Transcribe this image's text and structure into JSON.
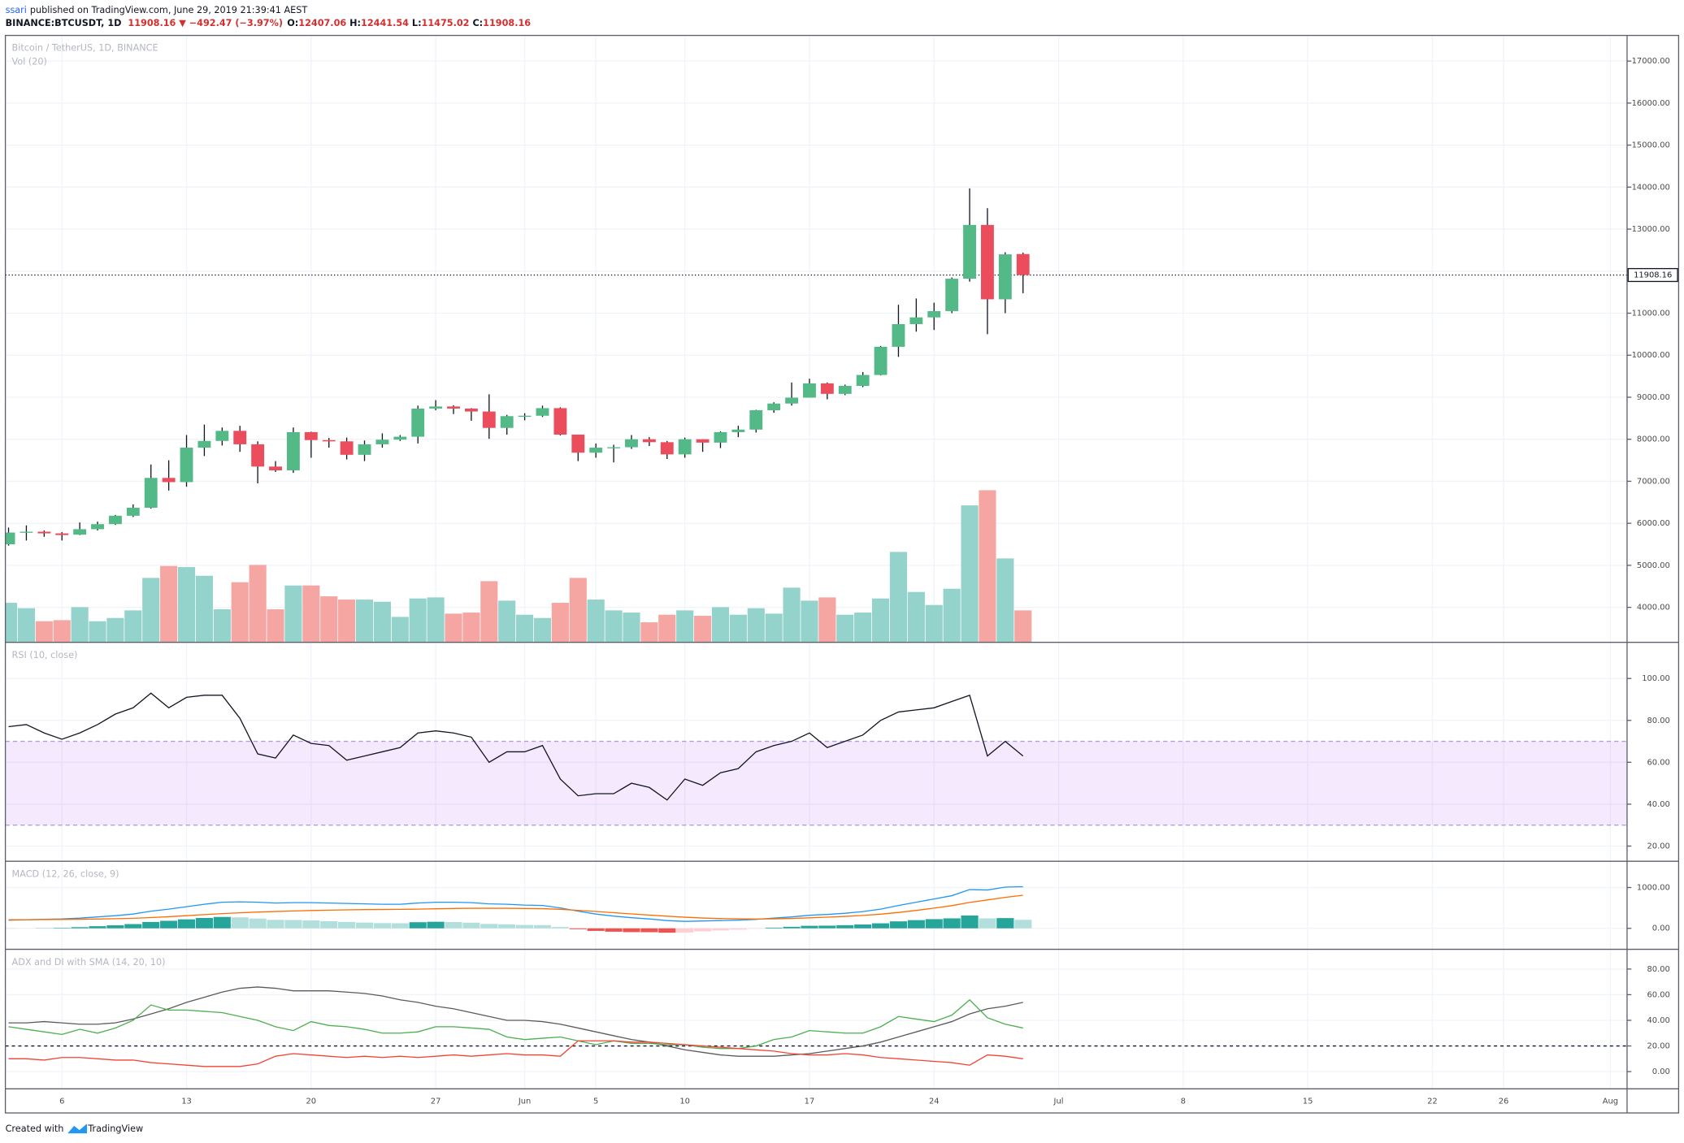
{
  "header": {
    "author": "ssari",
    "published": "published on TradingView.com, June 29, 2019 21:39:41 AEST",
    "symbol": "BINANCE:BTCUSDT, 1D",
    "change": "11908.16 ▼ −492.47 (−3.97%)",
    "ohlc": [
      [
        "O:",
        "12407.06"
      ],
      [
        "H:",
        "12441.54"
      ],
      [
        "L:",
        "11475.02"
      ],
      [
        "C:",
        "11908.16"
      ]
    ]
  },
  "footer": {
    "created": "Created with",
    "brand": "TradingView"
  },
  "chart_data": [
    {
      "type": "candlestick",
      "title": "Bitcoin / TetherUS, 1D, BINANCE",
      "volume_title": "Vol (20)",
      "up_color": "#53b987",
      "down_color": "#eb4d5c",
      "volume_up_color": "#94d3cb",
      "volume_down_color": "#f5a6a2",
      "x": [
        "2019-05-03",
        "2019-05-04",
        "2019-05-05",
        "2019-05-06",
        "2019-05-07",
        "2019-05-08",
        "2019-05-09",
        "2019-05-10",
        "2019-05-11",
        "2019-05-12",
        "2019-05-13",
        "2019-05-14",
        "2019-05-15",
        "2019-05-16",
        "2019-05-17",
        "2019-05-18",
        "2019-05-19",
        "2019-05-20",
        "2019-05-21",
        "2019-05-22",
        "2019-05-23",
        "2019-05-24",
        "2019-05-25",
        "2019-05-26",
        "2019-05-27",
        "2019-05-28",
        "2019-05-29",
        "2019-05-30",
        "2019-05-31",
        "2019-06-01",
        "2019-06-02",
        "2019-06-03",
        "2019-06-04",
        "2019-06-05",
        "2019-06-06",
        "2019-06-07",
        "2019-06-08",
        "2019-06-09",
        "2019-06-10",
        "2019-06-11",
        "2019-06-12",
        "2019-06-13",
        "2019-06-14",
        "2019-06-15",
        "2019-06-16",
        "2019-06-17",
        "2019-06-18",
        "2019-06-19",
        "2019-06-20",
        "2019-06-21",
        "2019-06-22",
        "2019-06-23",
        "2019-06-24",
        "2019-06-25",
        "2019-06-26",
        "2019-06-27",
        "2019-06-28",
        "2019-06-29"
      ],
      "open": [
        5500,
        5780,
        5800,
        5760,
        5730,
        5860,
        5980,
        6180,
        6370,
        7080,
        6980,
        7800,
        7960,
        8200,
        7880,
        7350,
        7260,
        8170,
        7980,
        7950,
        7630,
        7880,
        7990,
        8060,
        8730,
        8780,
        8730,
        8660,
        8270,
        8550,
        8560,
        8740,
        8110,
        7680,
        7800,
        7810,
        8000,
        7930,
        7640,
        8000,
        7920,
        8170,
        8230,
        8690,
        8850,
        8990,
        9330,
        9080,
        9270,
        9530,
        10200,
        10740,
        10900,
        11050,
        11820,
        13100,
        11330,
        12407.06
      ],
      "high": [
        5900,
        5950,
        5830,
        5790,
        6020,
        6040,
        6200,
        6450,
        7400,
        7500,
        8100,
        8350,
        8280,
        8320,
        7950,
        7480,
        8280,
        8180,
        8030,
        8040,
        7970,
        8140,
        8100,
        8800,
        8930,
        8810,
        8740,
        9070,
        8580,
        8620,
        8800,
        8760,
        8110,
        7900,
        7870,
        8100,
        8050,
        7960,
        8040,
        8000,
        8190,
        8320,
        8700,
        8880,
        9350,
        9440,
        9350,
        9300,
        9600,
        10220,
        11200,
        11350,
        11250,
        11850,
        13970,
        13500,
        12450,
        12441.54
      ],
      "low": [
        5470,
        5590,
        5680,
        5590,
        5720,
        5830,
        5960,
        6150,
        6350,
        6780,
        6870,
        7600,
        7850,
        7700,
        6950,
        7220,
        7200,
        7560,
        7800,
        7520,
        7480,
        7800,
        7960,
        7900,
        8690,
        8600,
        8440,
        8010,
        8110,
        8450,
        8530,
        8090,
        7480,
        7560,
        7450,
        7770,
        7840,
        7530,
        7560,
        7700,
        7790,
        8050,
        8160,
        8630,
        8800,
        8990,
        8950,
        9050,
        9240,
        9520,
        9960,
        10560,
        10600,
        11000,
        11750,
        10500,
        11000,
        11475.02
      ],
      "close": [
        5780,
        5800,
        5760,
        5720,
        5860,
        5980,
        6180,
        6370,
        7080,
        6980,
        7800,
        7960,
        8200,
        7880,
        7350,
        7260,
        8170,
        7980,
        7950,
        7630,
        7880,
        7990,
        8060,
        8730,
        8780,
        8730,
        8660,
        8270,
        8550,
        8560,
        8740,
        8110,
        7680,
        7800,
        7810,
        8000,
        7930,
        7640,
        8000,
        7920,
        8170,
        8230,
        8690,
        8850,
        8990,
        9330,
        9080,
        9270,
        9530,
        10200,
        10740,
        10900,
        11050,
        11820,
        13100,
        11330,
        12400,
        11908.16
      ],
      "volume": [
        36000,
        31000,
        19000,
        20000,
        32000,
        19000,
        22000,
        29000,
        59000,
        70000,
        69000,
        61000,
        30000,
        55000,
        71000,
        30000,
        52000,
        52000,
        42000,
        39000,
        39000,
        37000,
        23000,
        40000,
        41000,
        26000,
        27000,
        56000,
        38000,
        25000,
        22000,
        36000,
        59000,
        39000,
        29000,
        27000,
        18000,
        25000,
        29000,
        24000,
        32000,
        25000,
        31000,
        26000,
        50000,
        38000,
        41000,
        25000,
        27000,
        40000,
        83000,
        46000,
        34000,
        49000,
        126000,
        140000,
        77000,
        29000
      ],
      "xlim": [
        "2019-05-02",
        "2019-08-02"
      ],
      "xticks": [
        {
          "value": "2019-05-06",
          "label": "6"
        },
        {
          "value": "2019-05-13",
          "label": "13"
        },
        {
          "value": "2019-05-20",
          "label": "20"
        },
        {
          "value": "2019-05-27",
          "label": "27"
        },
        {
          "value": "2019-06-01",
          "label": "Jun"
        },
        {
          "value": "2019-06-05",
          "label": "5"
        },
        {
          "value": "2019-06-10",
          "label": "10"
        },
        {
          "value": "2019-06-17",
          "label": "17"
        },
        {
          "value": "2019-06-24",
          "label": "24"
        },
        {
          "value": "2019-07-01",
          "label": "Jul"
        },
        {
          "value": "2019-07-08",
          "label": "8"
        },
        {
          "value": "2019-07-15",
          "label": "15"
        },
        {
          "value": "2019-07-22",
          "label": "22"
        },
        {
          "value": "2019-07-26",
          "label": "26"
        },
        {
          "value": "2019-08-01",
          "label": "Aug"
        }
      ],
      "ylim": [
        3180,
        17610
      ],
      "yticks": [
        {
          "value": 4000,
          "label": "4000.00"
        },
        {
          "value": 5000,
          "label": "5000.00"
        },
        {
          "value": 6000,
          "label": "6000.00"
        },
        {
          "value": 7000,
          "label": "7000.00"
        },
        {
          "value": 8000,
          "label": "8000.00"
        },
        {
          "value": 9000,
          "label": "9000.00"
        },
        {
          "value": 10000,
          "label": "10000.00"
        },
        {
          "value": 11000,
          "label": "11000.00"
        },
        {
          "value": 12000,
          "label": "12000.00"
        },
        {
          "value": 13000,
          "label": "13000.00"
        },
        {
          "value": 14000,
          "label": "14000.00"
        },
        {
          "value": 15000,
          "label": "15000.00"
        },
        {
          "value": 16000,
          "label": "16000.00"
        },
        {
          "value": 17000,
          "label": "17000.00"
        }
      ]
    },
    {
      "type": "line",
      "title": "RSI (10, close)",
      "color": "#131722",
      "band": [
        30,
        70
      ],
      "band_color": "#9c27f5",
      "values": [
        77,
        78,
        74,
        71,
        74,
        78,
        83,
        86,
        93,
        86,
        91,
        92,
        92,
        81,
        64,
        62,
        73,
        69,
        68,
        61,
        63,
        65,
        67,
        74,
        75,
        74,
        72,
        60,
        65,
        65,
        68,
        52,
        44,
        45,
        45,
        50,
        48,
        42,
        52,
        49,
        55,
        57,
        65,
        68,
        70,
        74,
        67,
        70,
        73,
        80,
        84,
        85,
        86,
        89,
        92,
        63,
        70,
        63
      ],
      "ylim": [
        13,
        117
      ],
      "yticks": [
        {
          "value": 20,
          "label": "20.00"
        },
        {
          "value": 40,
          "label": "40.00"
        },
        {
          "value": 60,
          "label": "60.00"
        },
        {
          "value": 80,
          "label": "80.00"
        },
        {
          "value": 100,
          "label": "100.00"
        }
      ]
    },
    {
      "type": "macd",
      "title": "MACD (12, 26, close, 9)",
      "hist_colors": [
        "#26a69a",
        "#b2dfdb",
        "#ef5350",
        "#ffcdd2"
      ],
      "histogram": [
        -10,
        -2,
        5,
        12,
        28,
        52,
        74,
        104,
        156,
        185,
        220,
        254,
        279,
        269,
        240,
        208,
        205,
        193,
        174,
        157,
        141,
        128,
        125,
        150,
        161,
        154,
        139,
        109,
        99,
        83,
        79,
        33,
        -21,
        -63,
        -83,
        -93,
        -95,
        -107,
        -102,
        -73,
        -50,
        -32,
        -9,
        17,
        38,
        62,
        66,
        77,
        94,
        123,
        171,
        201,
        225,
        244,
        315,
        244,
        251,
        209
      ],
      "series": [
        {
          "color": "#2196f3",
          "values": [
            200,
            210,
            220,
            230,
            250,
            280,
            310,
            350,
            420,
            470,
            530,
            590,
            640,
            650,
            640,
            620,
            630,
            630,
            620,
            610,
            600,
            590,
            590,
            620,
            640,
            640,
            630,
            600,
            590,
            570,
            560,
            500,
            420,
            350,
            300,
            260,
            230,
            190,
            170,
            180,
            190,
            200,
            220,
            250,
            280,
            320,
            340,
            370,
            410,
            470,
            560,
            640,
            720,
            800,
            950,
            940,
            1010,
            1020
          ]
        },
        {
          "color": "#ff6d00",
          "values": [
            210,
            212,
            215,
            218,
            222,
            228,
            236,
            246,
            264,
            285,
            310,
            336,
            361,
            381,
            400,
            412,
            425,
            437,
            446,
            453,
            459,
            462,
            465,
            470,
            479,
            486,
            491,
            491,
            491,
            487,
            481,
            467,
            441,
            413,
            383,
            353,
            325,
            297,
            272,
            253,
            240,
            232,
            229,
            233,
            242,
            258,
            274,
            293,
            316,
            347,
            389,
            439,
            495,
            556,
            635,
            696,
            759,
            811
          ]
        }
      ],
      "ylim": [
        -500,
        1630
      ],
      "yticks": [
        {
          "value": 0,
          "label": "0.00"
        },
        {
          "value": 1000,
          "label": "1000.00"
        }
      ]
    },
    {
      "type": "line",
      "title": "ADX and DI with SMA (14, 20, 10)",
      "hline": 20,
      "series": [
        {
          "color": "#5b5b5b",
          "values": [
            38,
            38,
            39,
            38,
            37,
            37,
            38,
            41,
            45,
            49,
            54,
            58,
            62,
            65,
            66,
            65,
            63,
            63,
            63,
            62,
            61,
            59,
            56,
            54,
            51,
            49,
            46,
            43,
            40,
            40,
            39,
            37,
            34,
            31,
            28,
            25,
            23,
            20,
            17,
            15,
            13,
            12,
            12,
            12,
            13,
            14,
            16,
            18,
            20,
            23,
            27,
            31,
            35,
            39,
            45,
            49,
            51,
            54
          ]
        },
        {
          "color": "#4caf50",
          "values": [
            35,
            33,
            31,
            29,
            33,
            30,
            34,
            40,
            52,
            48,
            48,
            47,
            46,
            43,
            40,
            35,
            32,
            39,
            36,
            35,
            33,
            30,
            30,
            31,
            35,
            35,
            34,
            33,
            27,
            25,
            26,
            27,
            24,
            21,
            24,
            22,
            22,
            21,
            21,
            19,
            18,
            18,
            20,
            25,
            27,
            32,
            31,
            30,
            30,
            35,
            43,
            41,
            39,
            44,
            56,
            42,
            37,
            34
          ]
        },
        {
          "color": "#f44336",
          "values": [
            10,
            10,
            9,
            11,
            11,
            10,
            9,
            9,
            7,
            6,
            5,
            4,
            4,
            4,
            6,
            12,
            14,
            13,
            12,
            11,
            12,
            11,
            12,
            11,
            12,
            13,
            12,
            13,
            14,
            13,
            13,
            12,
            24,
            24,
            24,
            23,
            23,
            22,
            21,
            20,
            19,
            18,
            17,
            16,
            14,
            13,
            13,
            14,
            13,
            11,
            10,
            9,
            8,
            7,
            5,
            13,
            12,
            10
          ]
        }
      ],
      "ylim": [
        -13,
        95
      ],
      "yticks": [
        {
          "value": 0,
          "label": "0.00"
        },
        {
          "value": 20,
          "label": "20.00"
        },
        {
          "value": 40,
          "label": "40.00"
        },
        {
          "value": 60,
          "label": "60.00"
        },
        {
          "value": 80,
          "label": "80.00"
        }
      ]
    }
  ]
}
